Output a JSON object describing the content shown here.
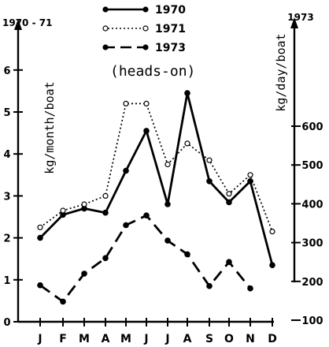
{
  "chart_data": {
    "type": "line",
    "title": "(heads-on)",
    "categories": [
      "J",
      "F",
      "M",
      "A",
      "M",
      "J",
      "J",
      "A",
      "S",
      "O",
      "N",
      "D"
    ],
    "left_axis": {
      "header": "1970 - 71",
      "label": "kg/month/boat",
      "range": [
        0,
        6.9
      ],
      "ticks": [
        "0",
        "1",
        "2",
        "3",
        "4",
        "5",
        "6"
      ]
    },
    "right_axis": {
      "header": "1973",
      "label": "kg/day/boat",
      "range": [
        100,
        650
      ],
      "ticks": [
        "100",
        "200",
        "300",
        "400",
        "500",
        "600"
      ]
    },
    "legend_position": "top-center",
    "grid": false,
    "series": [
      {
        "name": "1970",
        "axis": "left",
        "style": "solid",
        "marker": "filled-circle",
        "values": [
          2.0,
          2.55,
          2.7,
          2.6,
          3.6,
          4.55,
          2.8,
          5.45,
          3.35,
          2.85,
          3.35,
          1.35
        ]
      },
      {
        "name": "1971",
        "axis": "left",
        "style": "dotted",
        "marker": "open-circle",
        "values": [
          2.25,
          2.65,
          2.8,
          3.0,
          5.2,
          5.2,
          3.75,
          4.25,
          3.85,
          3.05,
          3.5,
          2.15
        ]
      },
      {
        "name": "1973",
        "axis": "right",
        "style": "dashed",
        "marker": "filled-circle",
        "values": [
          190,
          148,
          220,
          260,
          345,
          370,
          305,
          270,
          188,
          250,
          182,
          null
        ]
      }
    ]
  }
}
